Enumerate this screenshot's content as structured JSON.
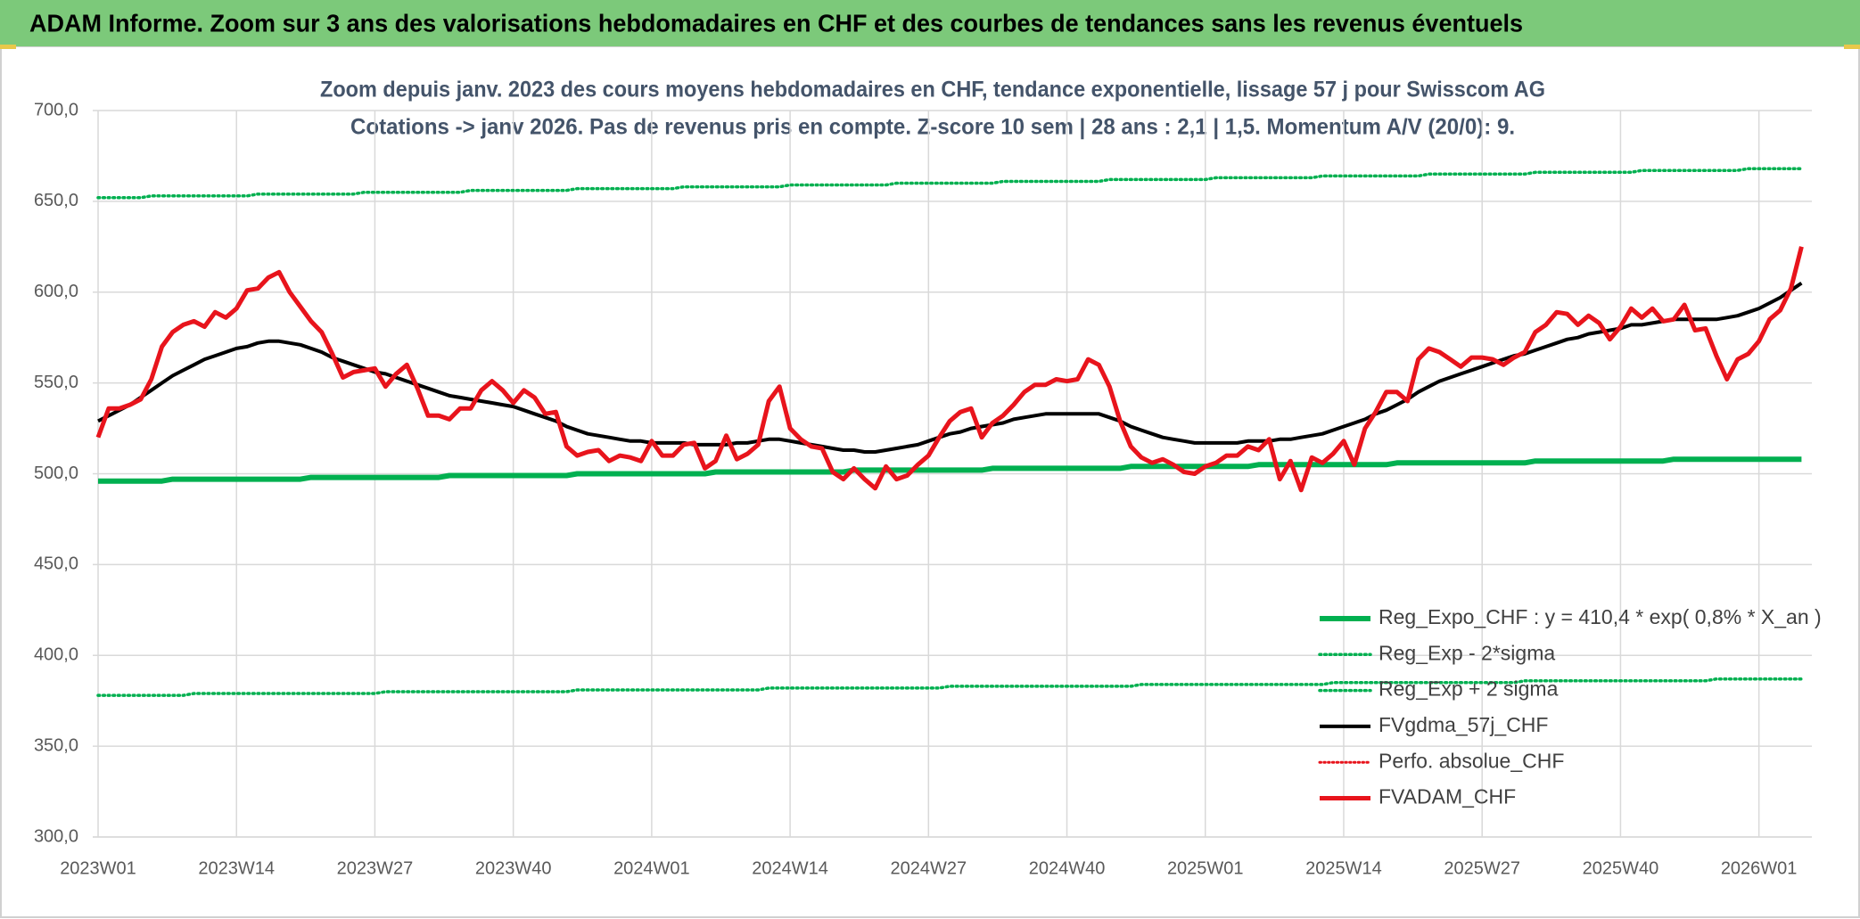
{
  "chart_data": {
    "type": "line",
    "banner": "ADAM Informe. Zoom sur 3 ans des valorisations hebdomadaires en CHF et des courbes de tendances sans les revenus éventuels",
    "title": "Zoom depuis janv. 2023 des cours moyens hebdomadaires en CHF, tendance exponentielle, lissage 57 j pour Swisscom AG",
    "subtitle": "Cotations -> janv 2026. Pas de revenus pris en compte. Z-score 10 sem | 28 ans : 2,1 | 1,5. Momentum A/V (20/0): 9.",
    "ylim": [
      300,
      700
    ],
    "yticks": [
      {
        "value": 300,
        "label": "300,0"
      },
      {
        "value": 350,
        "label": "350,0"
      },
      {
        "value": 400,
        "label": "400,0"
      },
      {
        "value": 450,
        "label": "450,0"
      },
      {
        "value": 500,
        "label": "500,0"
      },
      {
        "value": 550,
        "label": "550,0"
      },
      {
        "value": 600,
        "label": "600,0"
      },
      {
        "value": 650,
        "label": "650,0"
      },
      {
        "value": 700,
        "label": "700,0"
      }
    ],
    "grid": true,
    "legend": "lower right",
    "categories": [
      "2023W01",
      null,
      null,
      null,
      null,
      null,
      null,
      null,
      null,
      null,
      null,
      null,
      null,
      "2023W14",
      null,
      null,
      null,
      null,
      null,
      null,
      null,
      null,
      null,
      null,
      null,
      null,
      "2023W27",
      null,
      null,
      null,
      null,
      null,
      null,
      null,
      null,
      null,
      null,
      null,
      null,
      "2023W40",
      null,
      null,
      null,
      null,
      null,
      null,
      null,
      null,
      null,
      null,
      null,
      null,
      "2024W01",
      null,
      null,
      null,
      null,
      null,
      null,
      null,
      null,
      null,
      null,
      null,
      null,
      "2024W14",
      null,
      null,
      null,
      null,
      null,
      null,
      null,
      null,
      null,
      null,
      null,
      null,
      "2024W27",
      null,
      null,
      null,
      null,
      null,
      null,
      null,
      null,
      null,
      null,
      null,
      null,
      "2024W40",
      null,
      null,
      null,
      null,
      null,
      null,
      null,
      null,
      null,
      null,
      null,
      null,
      "2025W01",
      null,
      null,
      null,
      null,
      null,
      null,
      null,
      null,
      null,
      null,
      null,
      null,
      "2025W14",
      null,
      null,
      null,
      null,
      null,
      null,
      null,
      null,
      null,
      null,
      null,
      null,
      "2025W27",
      null,
      null,
      null,
      null,
      null,
      null,
      null,
      null,
      null,
      null,
      null,
      null,
      "2025W40",
      null,
      null,
      null,
      null,
      null,
      null,
      null,
      null,
      null,
      null,
      null,
      null,
      "2026W01",
      null,
      null,
      null,
      null
    ],
    "series": [
      {
        "name": "Reg_Expo_CHF : y = 410,4 * exp( 0,8% *  X_an )",
        "color": "#00b050",
        "style": "solid",
        "width": 6,
        "values": [
          496,
          496,
          496,
          496,
          496,
          496,
          496,
          497,
          497,
          497,
          497,
          497,
          497,
          497,
          497,
          497,
          497,
          497,
          497,
          497,
          498,
          498,
          498,
          498,
          498,
          498,
          498,
          498,
          498,
          498,
          498,
          498,
          498,
          499,
          499,
          499,
          499,
          499,
          499,
          499,
          499,
          499,
          499,
          499,
          499,
          500,
          500,
          500,
          500,
          500,
          500,
          500,
          500,
          500,
          500,
          500,
          500,
          500,
          501,
          501,
          501,
          501,
          501,
          501,
          501,
          501,
          501,
          501,
          501,
          501,
          501,
          502,
          502,
          502,
          502,
          502,
          502,
          502,
          502,
          502,
          502,
          502,
          502,
          502,
          503,
          503,
          503,
          503,
          503,
          503,
          503,
          503,
          503,
          503,
          503,
          503,
          503,
          504,
          504,
          504,
          504,
          504,
          504,
          504,
          504,
          504,
          504,
          504,
          504,
          505,
          505,
          505,
          505,
          505,
          505,
          505,
          505,
          505,
          505,
          505,
          505,
          505,
          506,
          506,
          506,
          506,
          506,
          506,
          506,
          506,
          506,
          506,
          506,
          506,
          506,
          507,
          507,
          507,
          507,
          507,
          507,
          507,
          507,
          507,
          507,
          507,
          507,
          507,
          508,
          508,
          508,
          508,
          508,
          508,
          508,
          508,
          508,
          508,
          508,
          508,
          508
        ]
      },
      {
        "name": "Reg_Exp - 2*sigma",
        "color": "#00b050",
        "style": "dotted",
        "width": 3.5,
        "values": [
          378,
          378,
          378,
          378,
          378,
          378,
          378,
          378,
          378,
          379,
          379,
          379,
          379,
          379,
          379,
          379,
          379,
          379,
          379,
          379,
          379,
          379,
          379,
          379,
          379,
          379,
          379,
          380,
          380,
          380,
          380,
          380,
          380,
          380,
          380,
          380,
          380,
          380,
          380,
          380,
          380,
          380,
          380,
          380,
          380,
          381,
          381,
          381,
          381,
          381,
          381,
          381,
          381,
          381,
          381,
          381,
          381,
          381,
          381,
          381,
          381,
          381,
          381,
          382,
          382,
          382,
          382,
          382,
          382,
          382,
          382,
          382,
          382,
          382,
          382,
          382,
          382,
          382,
          382,
          382,
          383,
          383,
          383,
          383,
          383,
          383,
          383,
          383,
          383,
          383,
          383,
          383,
          383,
          383,
          383,
          383,
          383,
          383,
          384,
          384,
          384,
          384,
          384,
          384,
          384,
          384,
          384,
          384,
          384,
          384,
          384,
          384,
          384,
          384,
          384,
          384,
          385,
          385,
          385,
          385,
          385,
          385,
          385,
          385,
          385,
          385,
          385,
          385,
          385,
          385,
          385,
          385,
          385,
          385,
          386,
          386,
          386,
          386,
          386,
          386,
          386,
          386,
          386,
          386,
          386,
          386,
          386,
          386,
          386,
          386,
          386,
          386,
          387,
          387,
          387,
          387,
          387,
          387,
          387,
          387,
          387
        ]
      },
      {
        "name": "Reg_Exp + 2 sigma",
        "color": "#00b050",
        "style": "dotted",
        "width": 3.5,
        "values": [
          652,
          652,
          652,
          652,
          652,
          653,
          653,
          653,
          653,
          653,
          653,
          653,
          653,
          653,
          653,
          654,
          654,
          654,
          654,
          654,
          654,
          654,
          654,
          654,
          654,
          655,
          655,
          655,
          655,
          655,
          655,
          655,
          655,
          655,
          655,
          656,
          656,
          656,
          656,
          656,
          656,
          656,
          656,
          656,
          656,
          657,
          657,
          657,
          657,
          657,
          657,
          657,
          657,
          657,
          657,
          658,
          658,
          658,
          658,
          658,
          658,
          658,
          658,
          658,
          658,
          659,
          659,
          659,
          659,
          659,
          659,
          659,
          659,
          659,
          659,
          660,
          660,
          660,
          660,
          660,
          660,
          660,
          660,
          660,
          660,
          661,
          661,
          661,
          661,
          661,
          661,
          661,
          661,
          661,
          661,
          662,
          662,
          662,
          662,
          662,
          662,
          662,
          662,
          662,
          662,
          663,
          663,
          663,
          663,
          663,
          663,
          663,
          663,
          663,
          663,
          664,
          664,
          664,
          664,
          664,
          664,
          664,
          664,
          664,
          664,
          665,
          665,
          665,
          665,
          665,
          665,
          665,
          665,
          665,
          665,
          666,
          666,
          666,
          666,
          666,
          666,
          666,
          666,
          666,
          666,
          667,
          667,
          667,
          667,
          667,
          667,
          667,
          667,
          667,
          667,
          668,
          668,
          668,
          668,
          668,
          668
        ]
      },
      {
        "name": "FVgdma_57j_CHF",
        "color": "#000000",
        "style": "solid",
        "width": 4,
        "values": [
          529,
          532,
          535,
          538,
          542,
          546,
          550,
          554,
          557,
          560,
          563,
          565,
          567,
          569,
          570,
          572,
          573,
          573,
          572,
          571,
          569,
          567,
          564,
          562,
          560,
          558,
          556,
          555,
          553,
          551,
          549,
          547,
          545,
          543,
          542,
          541,
          540,
          539,
          538,
          537,
          535,
          533,
          531,
          529,
          526,
          524,
          522,
          521,
          520,
          519,
          518,
          518,
          517,
          517,
          517,
          517,
          516,
          516,
          516,
          516,
          517,
          517,
          518,
          519,
          519,
          518,
          517,
          516,
          515,
          514,
          513,
          513,
          512,
          512,
          513,
          514,
          515,
          516,
          518,
          520,
          522,
          523,
          525,
          526,
          527,
          528,
          530,
          531,
          532,
          533,
          533,
          533,
          533,
          533,
          533,
          531,
          529,
          526,
          524,
          522,
          520,
          519,
          518,
          517,
          517,
          517,
          517,
          517,
          518,
          518,
          518,
          519,
          519,
          520,
          521,
          522,
          524,
          526,
          528,
          530,
          533,
          535,
          538,
          541,
          545,
          548,
          551,
          553,
          555,
          557,
          559,
          561,
          563,
          565,
          566,
          568,
          570,
          572,
          574,
          575,
          577,
          578,
          579,
          580,
          582,
          582,
          583,
          584,
          585,
          585,
          585,
          585,
          585,
          586,
          587,
          589,
          591,
          594,
          597,
          601,
          605
        ]
      },
      {
        "name": "Perfo. absolue_CHF",
        "color": "#e8141c",
        "style": "dotted",
        "width": 3,
        "values": [
          null,
          null,
          null,
          null,
          null,
          null,
          null,
          null,
          null,
          null,
          null,
          null,
          null,
          null,
          null,
          null,
          null,
          null,
          null,
          null,
          null,
          null,
          null,
          null,
          null,
          null,
          null,
          null,
          null,
          null,
          null,
          null,
          null,
          null,
          null,
          null,
          null,
          null,
          null,
          null,
          null,
          null,
          null,
          null,
          null,
          null,
          null,
          null,
          null,
          null,
          null,
          null,
          null,
          null,
          null,
          null,
          null,
          null,
          null,
          null,
          null,
          null,
          null,
          null,
          null,
          null,
          null,
          null,
          null,
          null,
          null,
          null,
          null,
          null,
          null,
          null,
          null,
          null,
          null,
          null,
          null,
          null,
          null,
          null,
          null,
          null,
          null,
          null,
          null,
          null,
          null,
          null,
          null,
          null,
          null,
          null,
          null,
          null,
          null,
          null,
          null,
          null,
          null,
          null,
          null,
          null,
          null,
          null,
          null,
          null,
          null,
          null,
          null,
          null,
          null,
          null,
          null,
          null,
          null,
          null,
          null,
          null,
          null,
          null,
          null,
          null,
          null,
          null,
          null,
          null,
          null,
          null,
          null,
          null,
          null,
          null,
          null,
          null,
          null,
          null,
          null,
          null,
          null,
          null,
          null,
          null,
          null,
          null,
          null,
          null,
          null,
          null,
          null,
          null,
          null,
          null,
          null,
          null,
          null,
          null,
          null
        ]
      },
      {
        "name": "FVADAM_CHF",
        "color": "#e8141c",
        "style": "solid",
        "width": 5,
        "values": [
          520,
          536,
          536,
          538,
          541,
          552,
          570,
          578,
          582,
          584,
          581,
          589,
          586,
          591,
          601,
          602,
          608,
          611,
          600,
          592,
          584,
          578,
          566,
          553,
          556,
          557,
          558,
          548,
          555,
          560,
          547,
          532,
          532,
          530,
          536,
          536,
          546,
          551,
          546,
          539,
          546,
          542,
          533,
          534,
          515,
          510,
          512,
          513,
          507,
          510,
          509,
          507,
          518,
          510,
          510,
          516,
          517,
          503,
          507,
          521,
          508,
          511,
          516,
          540,
          548,
          525,
          519,
          515,
          514,
          501,
          497,
          503,
          497,
          492,
          504,
          497,
          499,
          505,
          510,
          520,
          529,
          534,
          536,
          520,
          528,
          532,
          538,
          545,
          549,
          549,
          552,
          551,
          552,
          563,
          560,
          548,
          529,
          515,
          509,
          506,
          508,
          505,
          501,
          500,
          504,
          506,
          510,
          510,
          515,
          513,
          519,
          497,
          507,
          491,
          509,
          506,
          511,
          518,
          505,
          525,
          534,
          545,
          545,
          540,
          563,
          569,
          567,
          563,
          559,
          564,
          564,
          563,
          560,
          564,
          567,
          578,
          582,
          589,
          588,
          582,
          587,
          583,
          574,
          581,
          591,
          586,
          591,
          584,
          585,
          593,
          579,
          580,
          565,
          552,
          563,
          566,
          573,
          585,
          590,
          602,
          625
        ]
      }
    ]
  }
}
